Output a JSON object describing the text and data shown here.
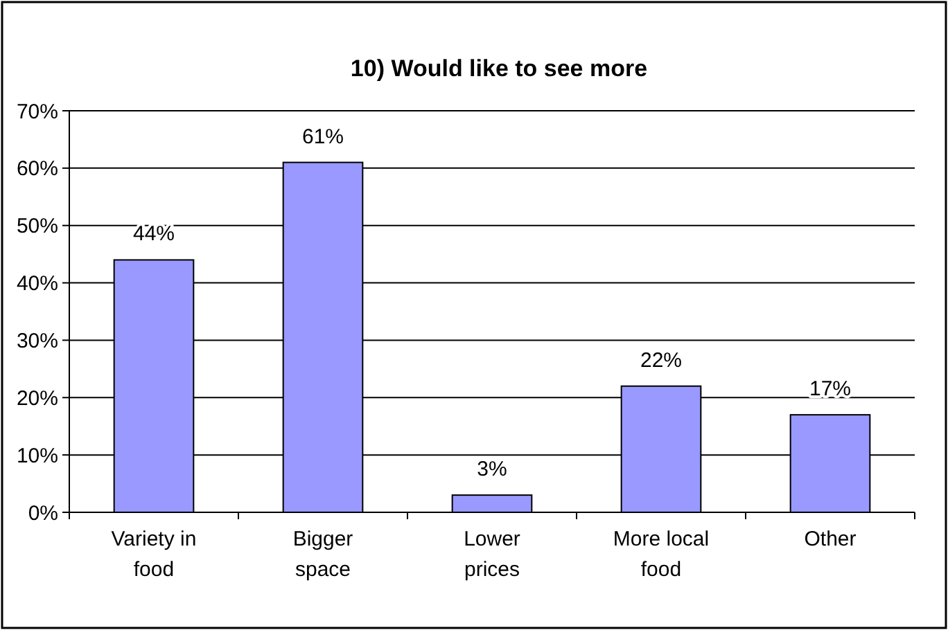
{
  "chart_data": {
    "type": "bar",
    "title": "10) Would like to see more",
    "categories": [
      "Variety in food",
      "Bigger space",
      "Lower prices",
      "More local food",
      "Other"
    ],
    "values": [
      44,
      61,
      3,
      22,
      17
    ],
    "value_labels": [
      "44%",
      "61%",
      "3%",
      "22%",
      "17%"
    ],
    "color": "#9999ff",
    "ylim": [
      0,
      70
    ],
    "yticks": [
      {
        "value": 0,
        "label": "0%"
      },
      {
        "value": 10,
        "label": "10%"
      },
      {
        "value": 20,
        "label": "20%"
      },
      {
        "value": 30,
        "label": "30%"
      },
      {
        "value": 40,
        "label": "40%"
      },
      {
        "value": 50,
        "label": "50%"
      },
      {
        "value": 60,
        "label": "60%"
      },
      {
        "value": 70,
        "label": "70%"
      }
    ],
    "grid": "y"
  }
}
